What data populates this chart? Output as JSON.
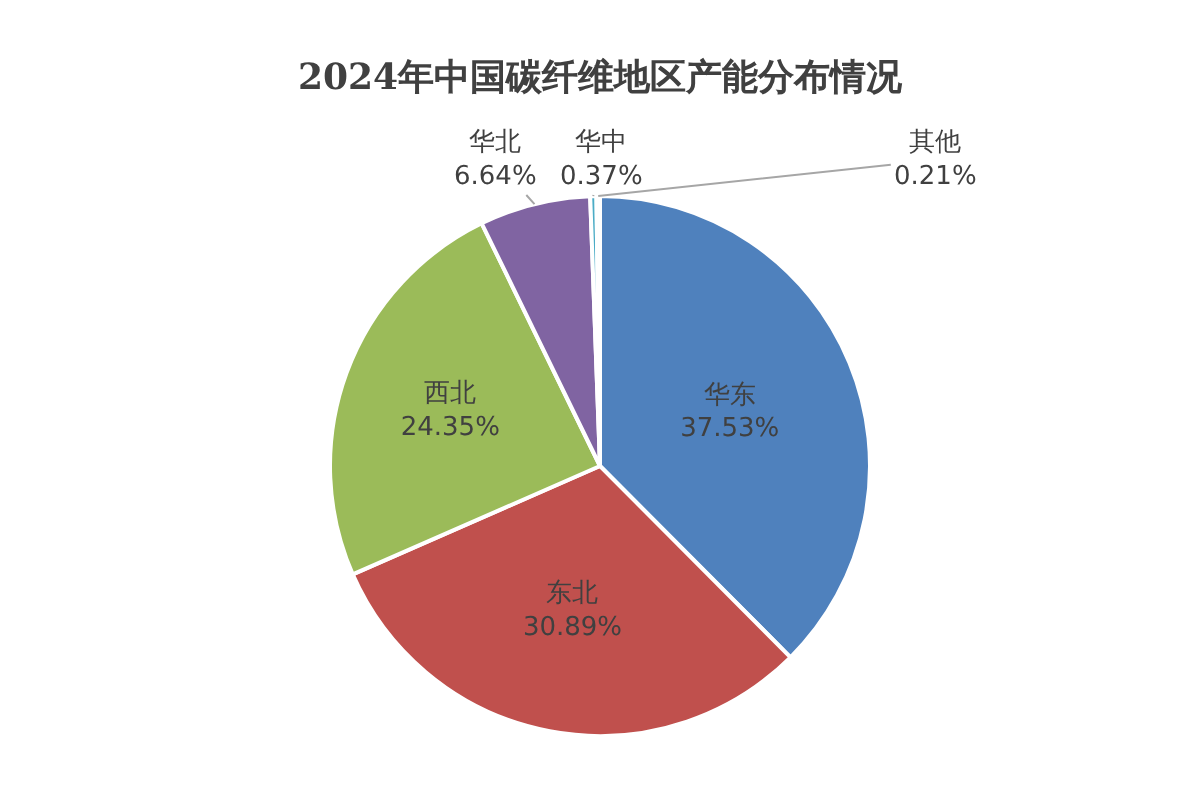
{
  "chart_data": {
    "type": "pie",
    "title": "2024年中国碳纤维地区产能分布情况",
    "categories": [
      "华东",
      "东北",
      "西北",
      "华北",
      "华中",
      "其他"
    ],
    "values": [
      37.53,
      30.89,
      24.35,
      6.64,
      0.37,
      0.21
    ],
    "value_labels": [
      "37.53%",
      "30.89%",
      "24.35%",
      "6.64%",
      "0.37%",
      "0.21%"
    ],
    "colors": [
      "#4f81bd",
      "#c0504d",
      "#9bbb59",
      "#8064a2",
      "#4bacc6",
      "#f79646"
    ],
    "legend": false
  }
}
